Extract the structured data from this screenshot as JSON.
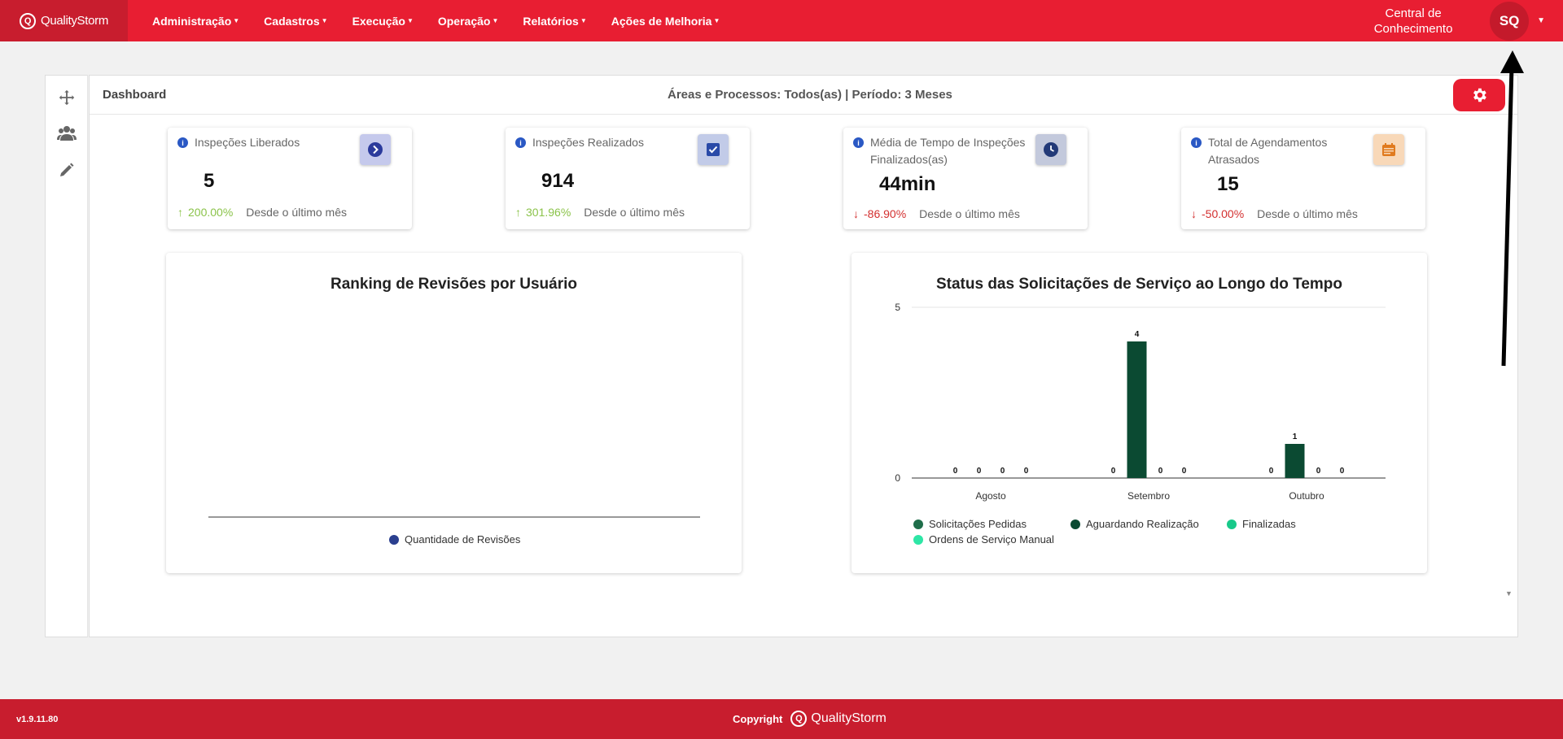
{
  "navbar": {
    "brand": "QualityStorm",
    "menu": [
      {
        "label": "Administração"
      },
      {
        "label": "Cadastros"
      },
      {
        "label": "Execução"
      },
      {
        "label": "Operação"
      },
      {
        "label": "Relatórios"
      },
      {
        "label": "Ações de Melhoria"
      }
    ],
    "knowledge_center": "Central de Conhecimento",
    "avatar_initials": "SQ"
  },
  "sidebar": {
    "icons": [
      "move-icon",
      "users-icon",
      "pencil-icon"
    ]
  },
  "header": {
    "title": "Dashboard",
    "filter_text": "Áreas e Processos:  Todos(as) | Período: 3 Meses"
  },
  "stats": [
    {
      "title": "Inspeções Liberados",
      "value": "5",
      "trend": "200.00%",
      "trend_dir": "up",
      "since": "Desde o último mês",
      "icon": "chevron-right-icon",
      "icon_bg": "#c5c9ec",
      "icon_color": "#2b3a9c"
    },
    {
      "title": "Inspeções Realizados",
      "value": "914",
      "trend": "301.96%",
      "trend_dir": "up",
      "since": "Desde o último mês",
      "icon": "checkbox-icon",
      "icon_bg": "#c2cbe8",
      "icon_color": "#2a4aa8"
    },
    {
      "title": "Média de Tempo de Inspeções Finalizados(as)",
      "value": "44min",
      "trend": "-86.90%",
      "trend_dir": "down",
      "since": "Desde o último mês",
      "icon": "clock-icon",
      "icon_bg": "#c3c9dc",
      "icon_color": "#233a78"
    },
    {
      "title": "Total de Agendamentos Atrasados",
      "value": "15",
      "trend": "-50.00%",
      "trend_dir": "down",
      "since": "Desde o último mês",
      "icon": "calendar-icon",
      "icon_bg": "#f8d8b8",
      "icon_color": "#e07a1e"
    }
  ],
  "chart_data": [
    {
      "type": "bar",
      "title": "Ranking de Revisões por Usuário",
      "categories": [],
      "series": [
        {
          "name": "Quantidade de Revisões",
          "values": [],
          "color": "#2a3f8f"
        }
      ],
      "legend_position": "bottom"
    },
    {
      "type": "bar",
      "title": "Status das Solicitações de Serviço ao Longo do Tempo",
      "categories": [
        "Agosto",
        "Setembro",
        "Outubro"
      ],
      "ylim": [
        0,
        5
      ],
      "yticks": [
        "0",
        "5"
      ],
      "series": [
        {
          "name": "Solicitações Pedidas",
          "values": [
            0,
            0,
            0
          ],
          "color": "#1f6e4a"
        },
        {
          "name": "Aguardando Realização",
          "values": [
            0,
            4,
            1
          ],
          "color": "#0b4a32"
        },
        {
          "name": "Finalizadas",
          "values": [
            0,
            0,
            0
          ],
          "color": "#18c98a"
        },
        {
          "name": "Ordens de Serviço Manual",
          "values": [
            0,
            0,
            0
          ],
          "color": "#2ee6a6"
        }
      ],
      "legend_position": "bottom"
    }
  ],
  "footer": {
    "version": "v1.9.11.80",
    "copyright": "Copyright",
    "logo_text": "QualityStorm"
  }
}
